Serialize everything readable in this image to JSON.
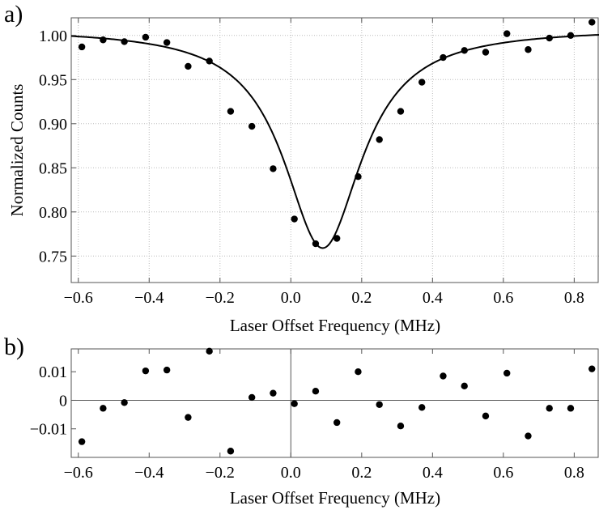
{
  "chart_data": [
    {
      "type": "scatter",
      "panel_label": "a)",
      "xlabel": "Laser Offset Frequency (MHz)",
      "ylabel": "Normalized Counts",
      "xlim": [
        -0.62,
        0.87
      ],
      "ylim": [
        0.72,
        1.02
      ],
      "xticks": [
        -0.6,
        -0.4,
        -0.2,
        0.0,
        0.2,
        0.4,
        0.6,
        0.8
      ],
      "xtick_labels": [
        "−0.6",
        "−0.4",
        "−0.2",
        "0.0",
        "0.2",
        "0.4",
        "0.6",
        "0.8"
      ],
      "yticks": [
        0.75,
        0.8,
        0.85,
        0.9,
        0.95,
        1.0
      ],
      "ytick_labels": [
        "0.75",
        "0.80",
        "0.85",
        "0.90",
        "0.95",
        "1.00"
      ],
      "grid": true,
      "series": [
        {
          "kind": "points",
          "x": [
            -0.59,
            -0.53,
            -0.47,
            -0.41,
            -0.35,
            -0.29,
            -0.23,
            -0.17,
            -0.11,
            -0.05,
            0.01,
            0.07,
            0.13,
            0.19,
            0.25,
            0.31,
            0.37,
            0.43,
            0.49,
            0.55,
            0.61,
            0.67,
            0.73,
            0.79,
            0.85
          ],
          "y": [
            0.987,
            0.995,
            0.993,
            0.998,
            0.992,
            0.965,
            0.971,
            0.914,
            0.897,
            0.849,
            0.792,
            0.764,
            0.77,
            0.84,
            0.882,
            0.914,
            0.947,
            0.975,
            0.983,
            0.981,
            1.002,
            0.984,
            0.997,
            1.0,
            1.015
          ]
        },
        {
          "kind": "fit",
          "model": "lorentzian",
          "center": 0.09,
          "hwhm": 0.135,
          "baseline": 1.008,
          "depth": 0.249
        }
      ]
    },
    {
      "type": "scatter",
      "panel_label": "b)",
      "xlabel": "Laser Offset Frequency (MHz)",
      "ylabel": "",
      "xlim": [
        -0.62,
        0.87
      ],
      "ylim": [
        -0.02,
        0.018
      ],
      "xticks": [
        -0.6,
        -0.4,
        -0.2,
        0.0,
        0.2,
        0.4,
        0.6,
        0.8
      ],
      "xtick_labels": [
        "−0.6",
        "−0.4",
        "−0.2",
        "0.0",
        "0.2",
        "0.4",
        "0.6",
        "0.8"
      ],
      "yticks": [
        -0.01,
        0,
        0.01
      ],
      "ytick_labels": [
        "−0.01",
        "0",
        "0.01"
      ],
      "grid": false,
      "series": [
        {
          "kind": "points",
          "x": [
            -0.59,
            -0.53,
            -0.47,
            -0.41,
            -0.35,
            -0.29,
            -0.23,
            -0.17,
            -0.11,
            -0.05,
            0.01,
            0.07,
            0.13,
            0.19,
            0.25,
            0.31,
            0.37,
            0.43,
            0.49,
            0.55,
            0.61,
            0.67,
            0.73,
            0.79,
            0.85
          ],
          "y": [
            -0.0145,
            -0.0028,
            -0.0008,
            0.0103,
            0.0106,
            -0.006,
            0.0172,
            -0.0178,
            0.001,
            0.0025,
            -0.0012,
            0.0032,
            -0.0078,
            0.01,
            -0.0015,
            -0.009,
            -0.0025,
            0.0085,
            0.005,
            -0.0055,
            0.0095,
            -0.0125,
            -0.0028,
            -0.0028,
            0.011
          ]
        }
      ]
    }
  ]
}
